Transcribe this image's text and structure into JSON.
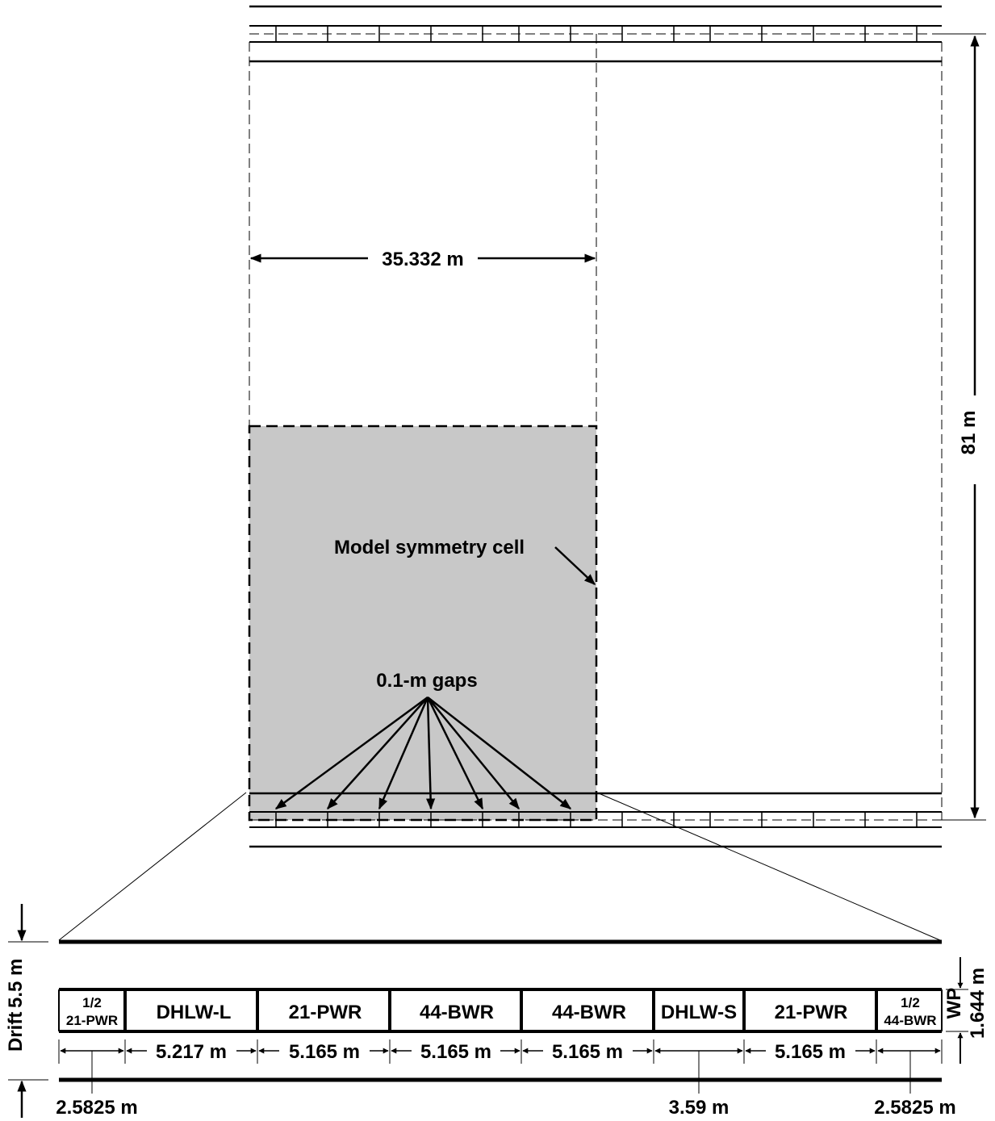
{
  "labels": {
    "width_dimension": "35.332 m",
    "height_dimension": "81 m",
    "symmetry_cell": "Model symmetry cell",
    "gaps": "0.1-m gaps",
    "drift": "Drift",
    "drift_height": "5.5 m",
    "wp": "WP",
    "wp_height": "1.644 m",
    "left_offset": "2.5825 m",
    "mid_offset": "3.59 m",
    "right_offset": "2.5825 m"
  },
  "packages": [
    {
      "line1": "1/2",
      "line2": "21-PWR"
    },
    {
      "line1": "DHLW-L"
    },
    {
      "line1": "21-PWR"
    },
    {
      "line1": "44-BWR"
    },
    {
      "line1": "44-BWR"
    },
    {
      "line1": "DHLW-S"
    },
    {
      "line1": "21-PWR"
    },
    {
      "line1": "1/2",
      "line2": "44-BWR"
    }
  ],
  "spacings": [
    {
      "label": ""
    },
    {
      "label": "5.217 m"
    },
    {
      "label": "5.165 m"
    },
    {
      "label": "5.165 m"
    },
    {
      "label": "5.165 m"
    },
    {
      "label": ""
    },
    {
      "label": "5.165 m"
    },
    {
      "label": ""
    }
  ],
  "colors": {
    "symmetry_cell_fill": "#c8c8c8",
    "line": "#000000"
  }
}
